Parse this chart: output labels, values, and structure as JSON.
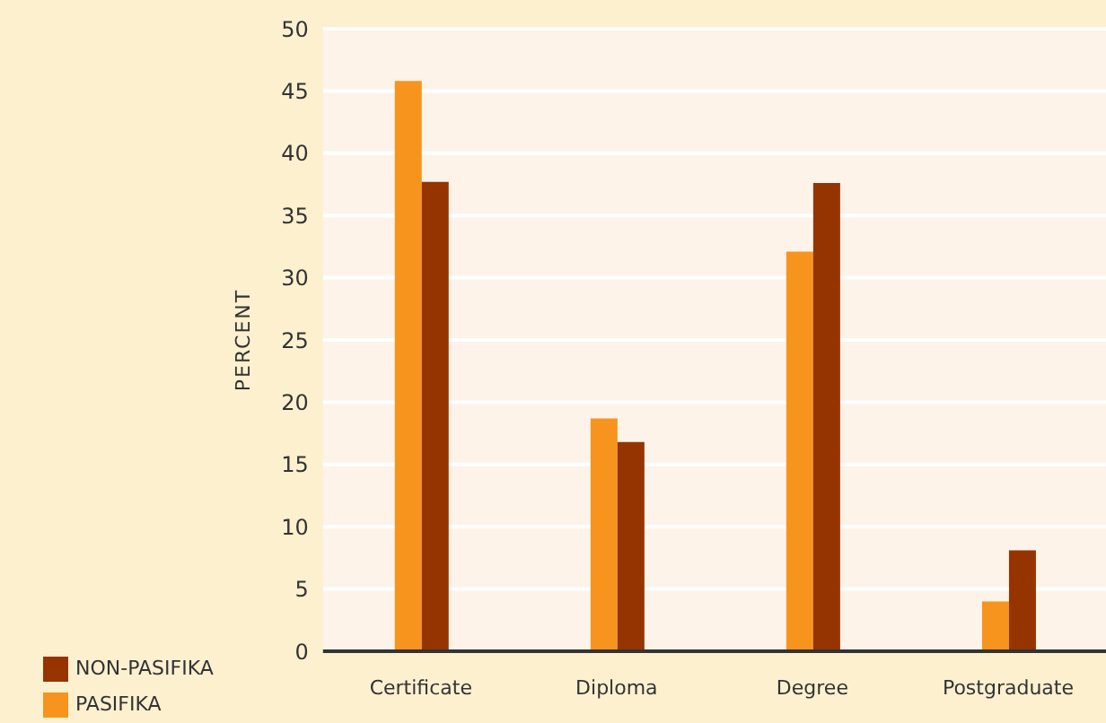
{
  "chart_data": {
    "type": "bar",
    "ylabel": "PERCENT",
    "categories": [
      "Certificate",
      "Diploma",
      "Degree",
      "Postgraduate"
    ],
    "series": [
      {
        "name": "PASIFIKA",
        "color": "#f7941d",
        "values": [
          45.8,
          18.7,
          32.1,
          4.0
        ]
      },
      {
        "name": "NON-PASIFIKA",
        "color": "#963400",
        "values": [
          37.7,
          16.8,
          37.6,
          8.1
        ]
      }
    ],
    "ylim": [
      0,
      50
    ],
    "yticks": [
      0,
      5,
      10,
      15,
      20,
      25,
      30,
      35,
      40,
      45,
      50
    ],
    "grid": "y",
    "legend": "bottom left"
  }
}
